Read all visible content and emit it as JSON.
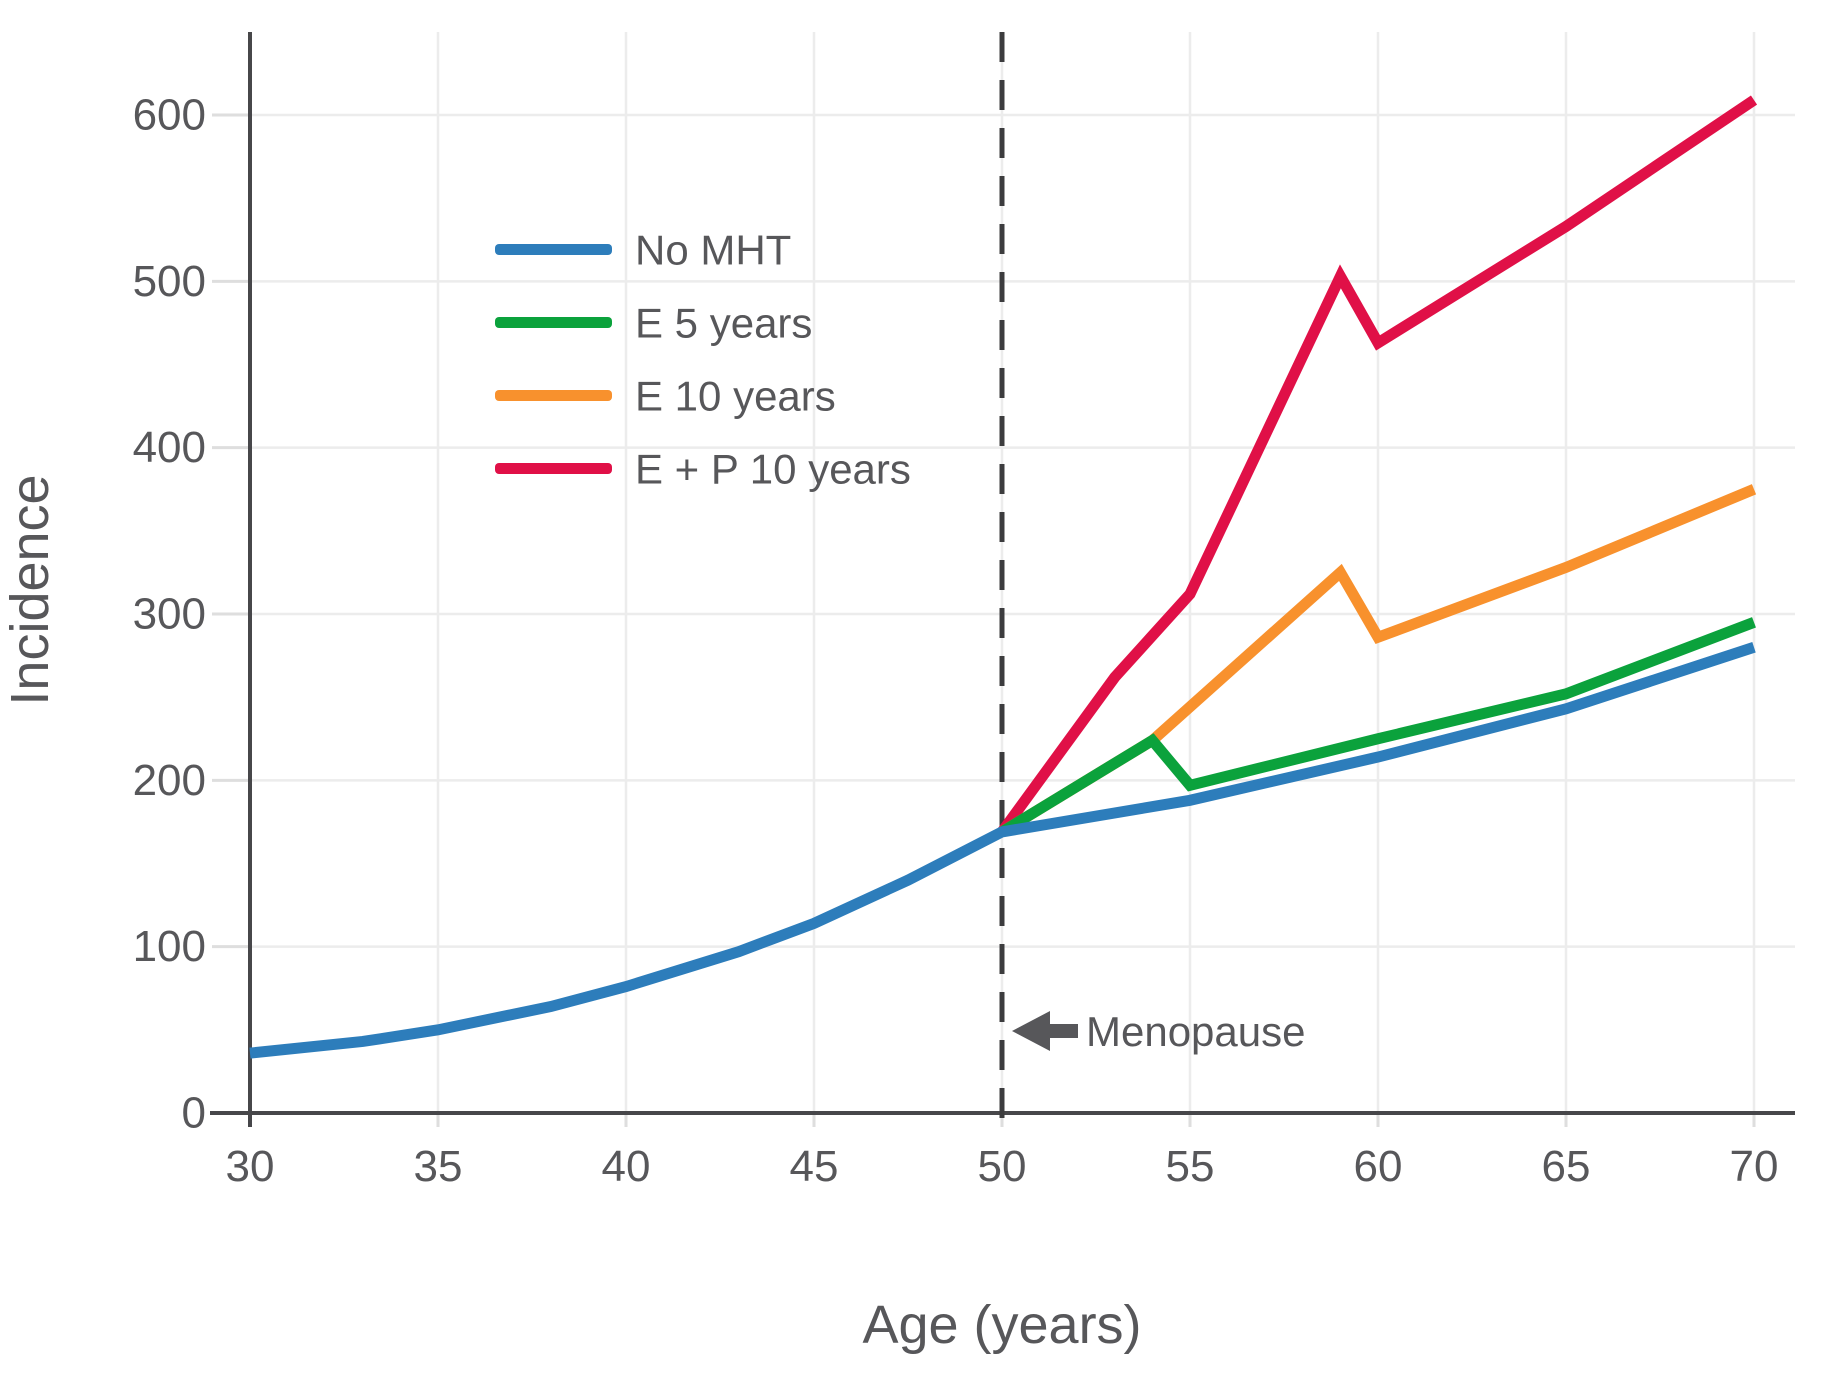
{
  "chart_data": {
    "type": "line",
    "title": "",
    "xlabel": "Age (years)",
    "ylabel": "Incidence",
    "x_ticks": [
      30,
      35,
      40,
      45,
      50,
      55,
      60,
      65,
      70
    ],
    "y_ticks": [
      0,
      100,
      200,
      300,
      400,
      500,
      600
    ],
    "xlim": [
      30,
      71
    ],
    "ylim": [
      0,
      650
    ],
    "grid": true,
    "legend_position": "upper left inside plot",
    "series": [
      {
        "name": "No MHT",
        "color": "#2d7dbb",
        "x": [
          30,
          33,
          35,
          38,
          40,
          43,
          45,
          47.5,
          50,
          55,
          60,
          65,
          70
        ],
        "y": [
          36,
          43,
          50,
          64,
          76,
          97,
          114,
          140,
          169,
          188,
          214,
          243,
          280
        ]
      },
      {
        "name": "E 5 years",
        "color": "#0ba23c",
        "x": [
          50,
          54,
          55,
          60,
          65,
          70
        ],
        "y": [
          169,
          224,
          197,
          225,
          252,
          295
        ]
      },
      {
        "name": "E 10 years",
        "color": "#f8912d",
        "x": [
          50,
          54,
          59,
          60,
          65,
          70
        ],
        "y": [
          169,
          224,
          325,
          286,
          328,
          375
        ]
      },
      {
        "name": "E + P 10 years",
        "color": "#e01047",
        "x": [
          50,
          53,
          55,
          59,
          60,
          65,
          70
        ],
        "y": [
          169,
          262,
          312,
          503,
          463,
          533,
          609
        ]
      }
    ],
    "annotation": {
      "label": "Menopause",
      "x": 50,
      "arrow_direction": "left"
    }
  },
  "style": {
    "text_color": "#57575a",
    "axis_color": "#47474a",
    "grid_color": "#ececec",
    "minor_tick_color": "#dedede",
    "dashed_line_color": "#3c3c3e",
    "background": "#ffffff"
  }
}
